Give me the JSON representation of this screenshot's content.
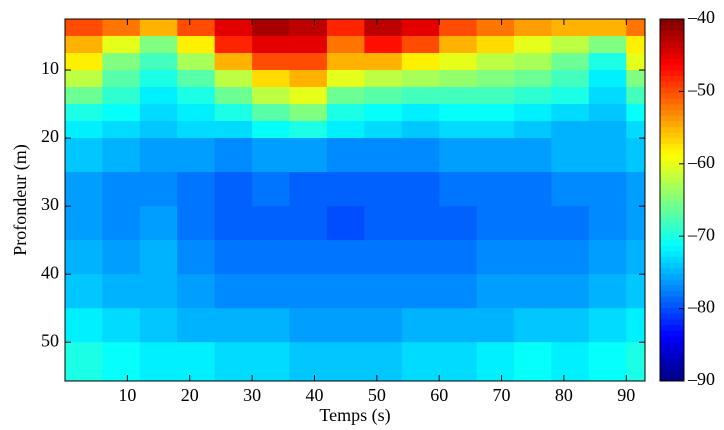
{
  "chart_data": {
    "type": "heatmap",
    "x_label": "Temps (s)",
    "y_label": "Profondeur (m)",
    "x_edges": [
      0,
      6,
      12,
      18,
      24,
      30,
      36,
      42,
      48,
      54,
      60,
      66,
      72,
      78,
      84,
      90,
      93
    ],
    "y_edges": [
      2.5,
      5,
      7.5,
      10,
      12.5,
      15,
      17.5,
      20,
      25,
      30,
      35,
      40,
      45,
      50,
      55.7
    ],
    "values": [
      [
        -50,
        -52,
        -55,
        -50,
        -45,
        -42,
        -43,
        -48,
        -43,
        -45,
        -50,
        -52,
        -54,
        -55,
        -55,
        -52
      ],
      [
        -55,
        -60,
        -65,
        -58,
        -48,
        -45,
        -45,
        -52,
        -47,
        -50,
        -55,
        -57,
        -60,
        -62,
        -65,
        -58
      ],
      [
        -58,
        -65,
        -68,
        -63,
        -55,
        -50,
        -50,
        -55,
        -55,
        -58,
        -60,
        -62,
        -63,
        -66,
        -70,
        -60
      ],
      [
        -62,
        -67,
        -70,
        -67,
        -62,
        -57,
        -55,
        -60,
        -62,
        -63,
        -64,
        -65,
        -66,
        -68,
        -72,
        -65
      ],
      [
        -66,
        -69,
        -72,
        -70,
        -66,
        -62,
        -60,
        -66,
        -67,
        -68,
        -68,
        -68,
        -69,
        -70,
        -73,
        -68
      ],
      [
        -70,
        -71,
        -73,
        -72,
        -70,
        -67,
        -65,
        -70,
        -71,
        -72,
        -71,
        -71,
        -72,
        -73,
        -74,
        -71
      ],
      [
        -72,
        -73,
        -74,
        -73,
        -73,
        -71,
        -70,
        -72,
        -73,
        -74,
        -73,
        -73,
        -74,
        -75,
        -75,
        -73
      ],
      [
        -74,
        -75,
        -76,
        -76,
        -77,
        -76,
        -76,
        -77,
        -77,
        -77,
        -76,
        -76,
        -76,
        -75,
        -75,
        -74
      ],
      [
        -76,
        -77,
        -77,
        -78,
        -79,
        -78,
        -79,
        -79,
        -79,
        -79,
        -78,
        -78,
        -78,
        -77,
        -77,
        -76
      ],
      [
        -76,
        -77,
        -76,
        -78,
        -79,
        -79,
        -79,
        -80,
        -79,
        -79,
        -79,
        -78,
        -78,
        -78,
        -77,
        -76
      ],
      [
        -75,
        -76,
        -75,
        -77,
        -78,
        -78,
        -78,
        -78,
        -78,
        -78,
        -78,
        -77,
        -77,
        -77,
        -76,
        -75
      ],
      [
        -74,
        -75,
        -75,
        -76,
        -77,
        -77,
        -77,
        -77,
        -77,
        -77,
        -77,
        -76,
        -76,
        -76,
        -75,
        -74
      ],
      [
        -72,
        -73,
        -74,
        -75,
        -75,
        -75,
        -76,
        -76,
        -76,
        -75,
        -75,
        -75,
        -74,
        -74,
        -73,
        -72
      ],
      [
        -70,
        -71,
        -72,
        -72,
        -73,
        -73,
        -74,
        -74,
        -74,
        -73,
        -73,
        -72,
        -71,
        -72,
        -71,
        -70
      ]
    ],
    "colormap": "jet",
    "xlim": [
      0,
      93
    ],
    "ylim": [
      55.7,
      2.5
    ],
    "xticks": [
      10,
      20,
      30,
      40,
      50,
      60,
      70,
      80,
      90
    ],
    "yticks": [
      10,
      20,
      30,
      40,
      50
    ],
    "clim": [
      -90,
      -40
    ],
    "cticks": [
      {
        "value": -90,
        "label": "–90"
      },
      {
        "value": -80,
        "label": "–80"
      },
      {
        "value": -70,
        "label": "–70"
      },
      {
        "value": -60,
        "label": "–60"
      },
      {
        "value": -50,
        "label": "–50"
      },
      {
        "value": -40,
        "label": "–40"
      }
    ]
  }
}
